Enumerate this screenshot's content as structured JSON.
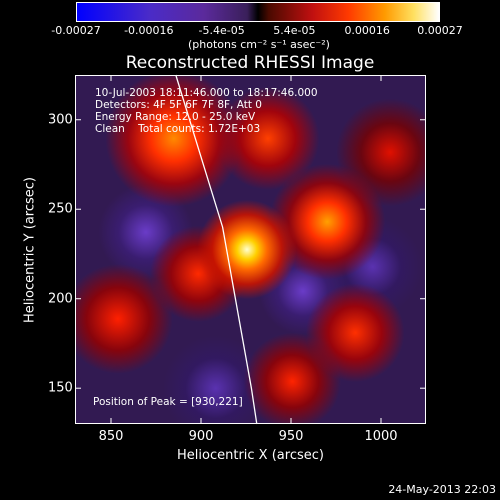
{
  "colorbar": {
    "ticks": [
      "-0.00027",
      "-0.00016",
      "-5.4e-05",
      "5.4e-05",
      "0.00016",
      "0.00027"
    ],
    "unit": "(photons cm⁻² s⁻¹ asec⁻²)"
  },
  "title": "Reconstructed RHESSI Image",
  "info": {
    "line1": "10-Jul-2003 18:11:46.000 to 18:17:46.000",
    "line2": "Detectors: 4F 5F 6F 7F 8F, Att 0",
    "line3": "Energy Range: 12.0 - 25.0 keV",
    "line4": "Clean    Total counts: 1.72E+03"
  },
  "peak_label": "Position of Peak = [930,221]",
  "footer": "24-May-2013 22:03",
  "chart_data": {
    "type": "heatmap",
    "title": "Reconstructed RHESSI Image",
    "xlabel": "Heliocentric X (arcsec)",
    "ylabel": "Heliocentric Y (arcsec)",
    "xlim": [
      830,
      1025
    ],
    "ylim": [
      130,
      325
    ],
    "x_ticks": [
      850,
      900,
      950,
      1000
    ],
    "y_ticks": [
      150,
      200,
      250,
      300
    ],
    "colorbar_range": [
      -0.00027,
      0.00027
    ],
    "peak": [
      930,
      221
    ],
    "limb_line": [
      [
        886,
        325
      ],
      [
        912,
        240
      ],
      [
        928,
        150
      ],
      [
        931,
        130
      ]
    ]
  }
}
